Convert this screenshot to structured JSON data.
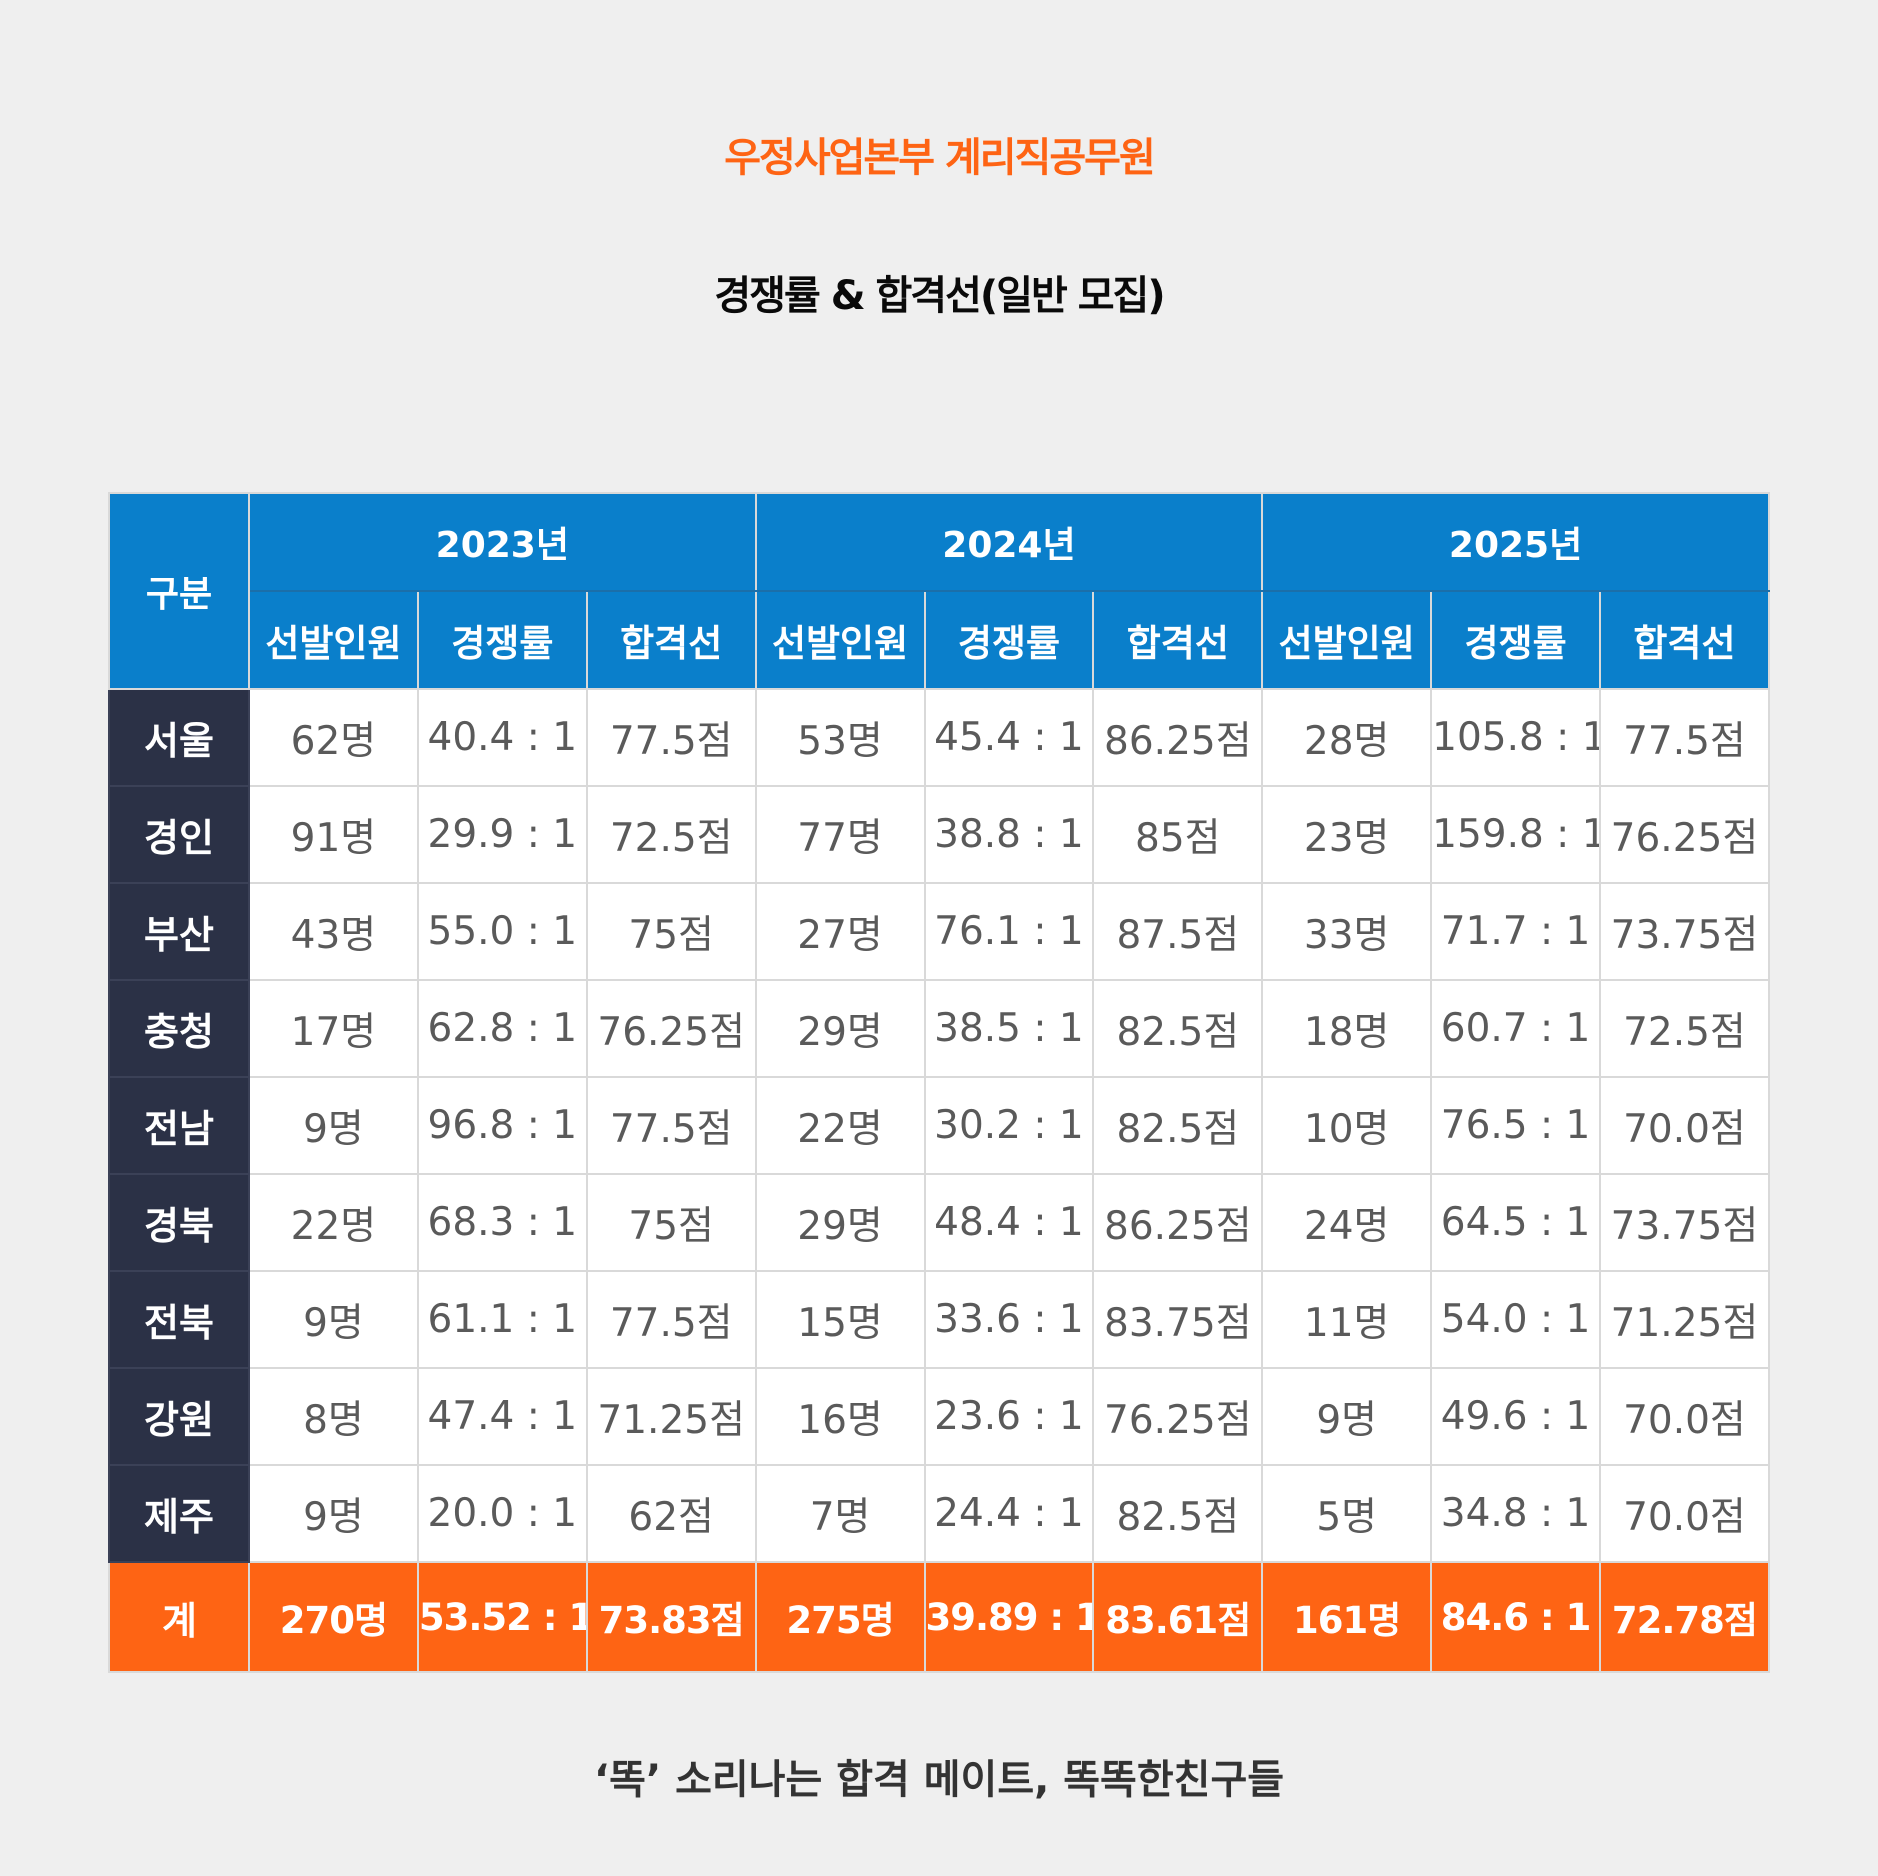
{
  "title_line1": "우정사업본부 계리직공무원",
  "title_line2": "경쟁률 & 합격선(일반 모집)",
  "colors": {
    "accent": "#fe6414",
    "header": "#0a7fcb",
    "region": "#2b3146",
    "background": "#efefef"
  },
  "chart_data": {
    "type": "table",
    "corner_label": "구분",
    "years": [
      "2023년",
      "2024년",
      "2025년"
    ],
    "subheaders": [
      "선발인원",
      "경쟁률",
      "합격선"
    ],
    "rows": [
      {
        "region": "서울",
        "values": [
          "62명",
          "40.4 : 1",
          "77.5점",
          "53명",
          "45.4 : 1",
          "86.25점",
          "28명",
          "105.8 : 1",
          "77.5점"
        ]
      },
      {
        "region": "경인",
        "values": [
          "91명",
          "29.9 : 1",
          "72.5점",
          "77명",
          "38.8 : 1",
          "85점",
          "23명",
          "159.8 : 1",
          "76.25점"
        ]
      },
      {
        "region": "부산",
        "values": [
          "43명",
          "55.0 : 1",
          "75점",
          "27명",
          "76.1 : 1",
          "87.5점",
          "33명",
          "71.7 : 1",
          "73.75점"
        ]
      },
      {
        "region": "충청",
        "values": [
          "17명",
          "62.8 : 1",
          "76.25점",
          "29명",
          "38.5 : 1",
          "82.5점",
          "18명",
          "60.7 : 1",
          "72.5점"
        ]
      },
      {
        "region": "전남",
        "values": [
          "9명",
          "96.8 : 1",
          "77.5점",
          "22명",
          "30.2 : 1",
          "82.5점",
          "10명",
          "76.5 : 1",
          "70.0점"
        ]
      },
      {
        "region": "경북",
        "values": [
          "22명",
          "68.3 : 1",
          "75점",
          "29명",
          "48.4 : 1",
          "86.25점",
          "24명",
          "64.5 : 1",
          "73.75점"
        ]
      },
      {
        "region": "전북",
        "values": [
          "9명",
          "61.1 : 1",
          "77.5점",
          "15명",
          "33.6 : 1",
          "83.75점",
          "11명",
          "54.0 : 1",
          "71.25점"
        ]
      },
      {
        "region": "강원",
        "values": [
          "8명",
          "47.4 : 1",
          "71.25점",
          "16명",
          "23.6 : 1",
          "76.25점",
          "9명",
          "49.6 : 1",
          "70.0점"
        ]
      },
      {
        "region": "제주",
        "values": [
          "9명",
          "20.0 : 1",
          "62점",
          "7명",
          "24.4 : 1",
          "82.5점",
          "5명",
          "34.8 : 1",
          "70.0점"
        ]
      }
    ],
    "total": {
      "region": "계",
      "values": [
        "270명",
        "53.52 : 1",
        "73.83점",
        "275명",
        "39.89 : 1",
        "83.61점",
        "161명",
        "84.6 : 1",
        "72.78점"
      ]
    }
  },
  "footer": "‘똑’ 소리나는 합격 메이트, 똑똑한친구들"
}
